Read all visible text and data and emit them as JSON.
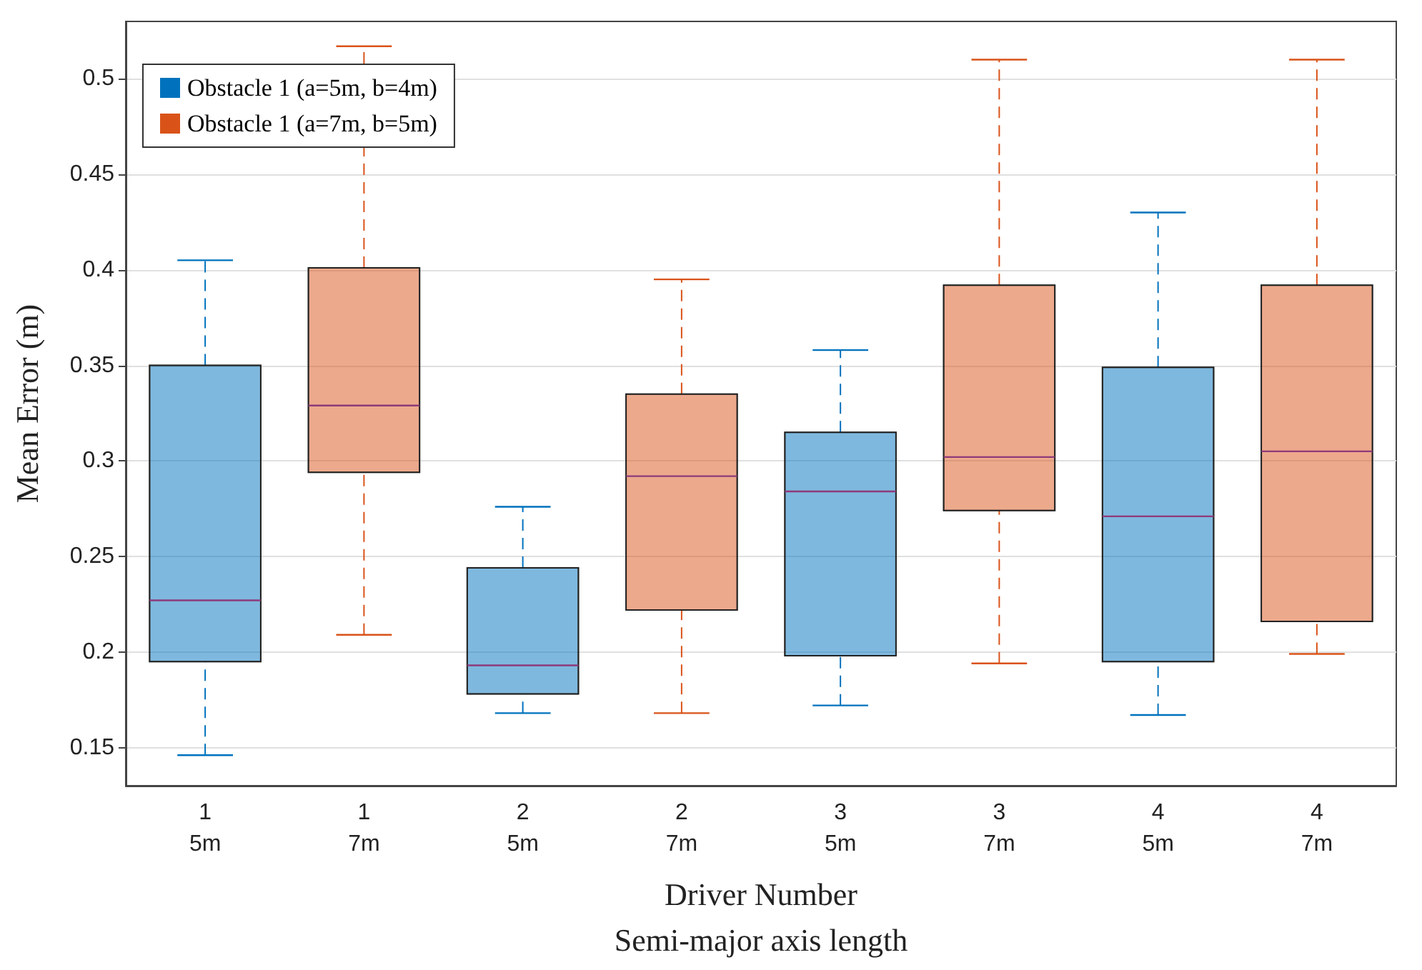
{
  "chart_data": {
    "type": "box",
    "xlabel": "Driver Number\nSemi-major axis length",
    "ylabel": "Mean Error (m)",
    "categories": [
      "1\n5m",
      "1\n7m",
      "2\n5m",
      "2\n7m",
      "3\n5m",
      "3\n7m",
      "4\n5m",
      "4\n7m"
    ],
    "series": [
      {
        "name": "Obstacle 1 (a=5m, b=4m)",
        "color": "#0072bd",
        "boxes": [
          {
            "low": 0.146,
            "q1": 0.195,
            "median": 0.227,
            "q3": 0.35,
            "high": 0.405
          },
          null,
          {
            "low": 0.168,
            "q1": 0.178,
            "median": 0.193,
            "q3": 0.244,
            "high": 0.276
          },
          null,
          {
            "low": 0.172,
            "q1": 0.198,
            "median": 0.284,
            "q3": 0.315,
            "high": 0.358
          },
          null,
          {
            "low": 0.167,
            "q1": 0.195,
            "median": 0.271,
            "q3": 0.349,
            "high": 0.43
          },
          null
        ]
      },
      {
        "name": "Obstacle 1 (a=7m, b=5m)",
        "color": "#d95319",
        "boxes": [
          null,
          {
            "low": 0.209,
            "q1": 0.294,
            "median": 0.329,
            "q3": 0.401,
            "high": 0.517
          },
          null,
          {
            "low": 0.168,
            "q1": 0.222,
            "median": 0.292,
            "q3": 0.335,
            "high": 0.395
          },
          null,
          {
            "low": 0.194,
            "q1": 0.274,
            "median": 0.302,
            "q3": 0.392,
            "high": 0.51
          },
          null,
          {
            "low": 0.199,
            "q1": 0.216,
            "median": 0.305,
            "q3": 0.392,
            "high": 0.51
          }
        ]
      }
    ],
    "ylim": [
      0.13,
      0.53
    ],
    "yticks": [
      0.15,
      0.2,
      0.25,
      0.3,
      0.35,
      0.4,
      0.45,
      0.5
    ],
    "grid": "y",
    "legend": "top left",
    "line_style": "dashed"
  }
}
